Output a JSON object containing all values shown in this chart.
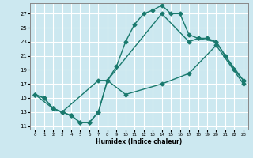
{
  "background_color": "#cce8f0",
  "grid_color": "#ffffff",
  "line_color": "#1a7a6e",
  "xlabel": "Humidex (Indice chaleur)",
  "ylim": [
    10.5,
    28.5
  ],
  "xlim": [
    -0.5,
    23.5
  ],
  "yticks": [
    11,
    13,
    15,
    17,
    19,
    21,
    23,
    25,
    27
  ],
  "xticks": [
    0,
    1,
    2,
    3,
    4,
    5,
    6,
    7,
    8,
    9,
    10,
    11,
    12,
    13,
    14,
    15,
    16,
    17,
    18,
    19,
    20,
    21,
    22,
    23
  ],
  "line1_x": [
    0,
    1,
    2,
    3,
    4,
    5,
    6,
    7,
    8,
    9,
    10,
    11,
    12,
    13,
    14,
    15,
    16,
    17,
    18,
    19,
    20,
    21,
    22,
    23
  ],
  "line1_y": [
    15.5,
    15.0,
    13.5,
    13.0,
    12.5,
    11.5,
    11.5,
    13.0,
    17.5,
    19.5,
    23.0,
    25.5,
    27.0,
    27.5,
    28.2,
    27.0,
    27.0,
    24.0,
    23.5,
    23.5,
    23.0,
    21.0,
    19.0,
    17.5
  ],
  "line2_x": [
    0,
    2,
    3,
    4,
    5,
    6,
    7,
    8,
    14,
    17,
    18,
    20,
    21,
    23
  ],
  "line2_y": [
    15.5,
    13.5,
    13.0,
    12.5,
    11.5,
    11.5,
    13.0,
    17.5,
    27.0,
    23.0,
    23.5,
    23.0,
    21.0,
    17.5
  ],
  "line3_x": [
    0,
    1,
    2,
    3,
    7,
    8,
    10,
    14,
    17,
    20,
    23
  ],
  "line3_y": [
    15.5,
    15.0,
    13.5,
    13.0,
    17.5,
    17.5,
    15.5,
    17.0,
    18.5,
    22.5,
    17.0
  ],
  "marker": "D",
  "markersize": 2.5,
  "linewidth": 1.0
}
